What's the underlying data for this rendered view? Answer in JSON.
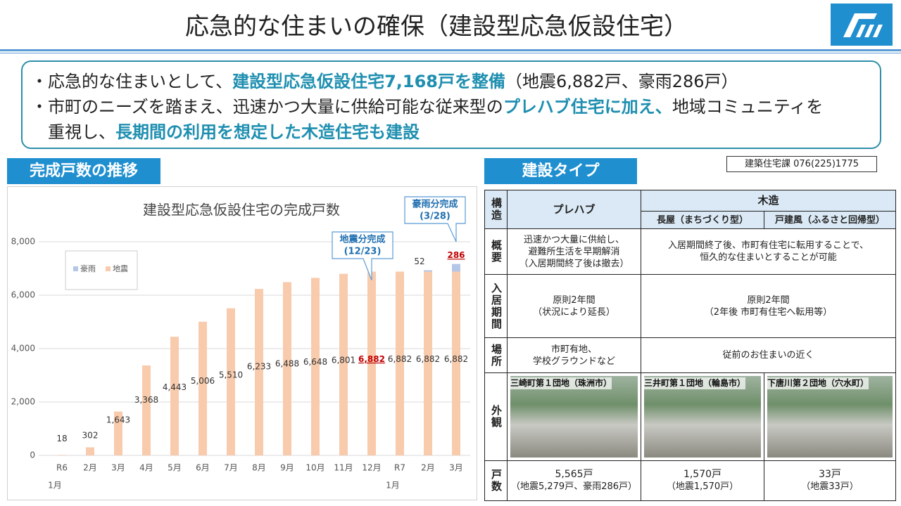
{
  "header": {
    "title": "応急的な住まいの確保（建設型応急仮設住宅）"
  },
  "summary": {
    "lines": [
      [
        {
          "text": "・応急的な住まいとして、"
        },
        {
          "text": "建設型応急仮設住宅7,168戸を整備",
          "emphasis": true
        },
        {
          "text": "（地震6,882戸、豪雨286戸）"
        }
      ],
      [
        {
          "text": "・市町のニーズを踏まえ、迅速かつ大量に供給可能な従来型の"
        },
        {
          "text": "プレハブ住宅に加え、",
          "emphasis": true
        },
        {
          "text": "地域コミュニティを"
        }
      ],
      [
        {
          "text": "　重視し、"
        },
        {
          "text": "長期間の利用を想定した木造住宅も建設",
          "emphasis": true
        }
      ]
    ]
  },
  "sections": {
    "chart_heading": "完成戸数の推移",
    "table_heading": "建設タイプ",
    "contact": "建築住宅課 076(225)1775"
  },
  "chart_data": {
    "type": "stacked_bar",
    "title": "建設型応急仮設住宅の完成戸数",
    "categories": [
      [
        "R6",
        "1月"
      ],
      [
        "2月"
      ],
      [
        "3月"
      ],
      [
        "4月"
      ],
      [
        "5月"
      ],
      [
        "6月"
      ],
      [
        "7月"
      ],
      [
        "8月"
      ],
      [
        "9月"
      ],
      [
        "10月"
      ],
      [
        "11月"
      ],
      [
        "12月"
      ],
      [
        "R7",
        "1月"
      ],
      [
        "2月"
      ],
      [
        "3月"
      ]
    ],
    "series": [
      {
        "name": "地震",
        "color": "#f8cbad",
        "values": [
          18,
          302,
          1643,
          3368,
          4443,
          5006,
          5510,
          6233,
          6488,
          6648,
          6801,
          6882,
          6882,
          6882,
          6882
        ],
        "value_labels": [
          "18",
          "302",
          "1,643",
          "3,368",
          "4,443",
          "5,006",
          "5,510",
          "6,233",
          "6,488",
          "6,648",
          "6,801",
          "6,882",
          "6,882",
          "6,882",
          "6,882"
        ],
        "highlight": [
          11
        ]
      },
      {
        "name": "豪雨",
        "color": "#b4c7e7",
        "values": [
          null,
          null,
          null,
          null,
          null,
          null,
          null,
          null,
          null,
          null,
          null,
          null,
          null,
          52,
          286
        ],
        "value_labels": [
          null,
          null,
          null,
          null,
          null,
          null,
          null,
          null,
          null,
          null,
          null,
          null,
          null,
          "52",
          "286"
        ],
        "highlight": [
          14
        ]
      }
    ],
    "highlight_color": "#c00000",
    "ylim": [
      0,
      8000
    ],
    "yticks": [
      0,
      {
        "value": 2000,
        "label": "2,000"
      },
      {
        "value": 4000,
        "label": "4,000"
      },
      {
        "value": 6000,
        "label": "6,000"
      },
      {
        "value": 8000,
        "label": "8,000"
      }
    ],
    "grid": true,
    "legend": "top-left",
    "annotations": [
      {
        "text": [
          "地震分完成",
          "(12/23)"
        ],
        "category": 11
      },
      {
        "text": [
          "豪雨分完成",
          "(3/28)"
        ],
        "category": 14
      }
    ]
  },
  "table": {
    "header": {
      "corner": "構造",
      "prefab": "プレハブ",
      "wood": "木造",
      "wood_types": [
        "長屋（まちづくり型）",
        "戸建風（ふるさと回帰型）"
      ]
    },
    "rows": [
      {
        "label": "概要",
        "cells": [
          [
            "迅速かつ大量に供給し、",
            "避難所生活を早期解消",
            "（入居期間終了後は撤去）"
          ],
          [
            "入居期間終了後、市町有住宅に転用することで、",
            "恒久的な住まいとすることが可能"
          ]
        ]
      },
      {
        "label": "入居期間",
        "cells": [
          [
            "原則2年間",
            "（状況により延長）"
          ],
          [
            "原則2年間",
            "（2年後 市町有住宅へ転用等）"
          ]
        ]
      },
      {
        "label": "場所",
        "cells": [
          [
            "市町有地、",
            "学校グラウンドなど"
          ],
          [
            "従前のお住まいの近く"
          ]
        ]
      },
      {
        "label": "外観",
        "photos": [
          "三崎町第１団地（珠洲市）",
          "三井町第１団地（輪島市）",
          "下唐川第２団地（穴水町）"
        ]
      },
      {
        "label": "戸数",
        "cells": [
          [
            "5,565戸",
            "（地震5,279戸、豪雨286戸）"
          ],
          [
            "1,570戸",
            "（地震1,570戸）"
          ],
          [
            "33戸",
            "（地震33戸）"
          ]
        ]
      }
    ]
  }
}
